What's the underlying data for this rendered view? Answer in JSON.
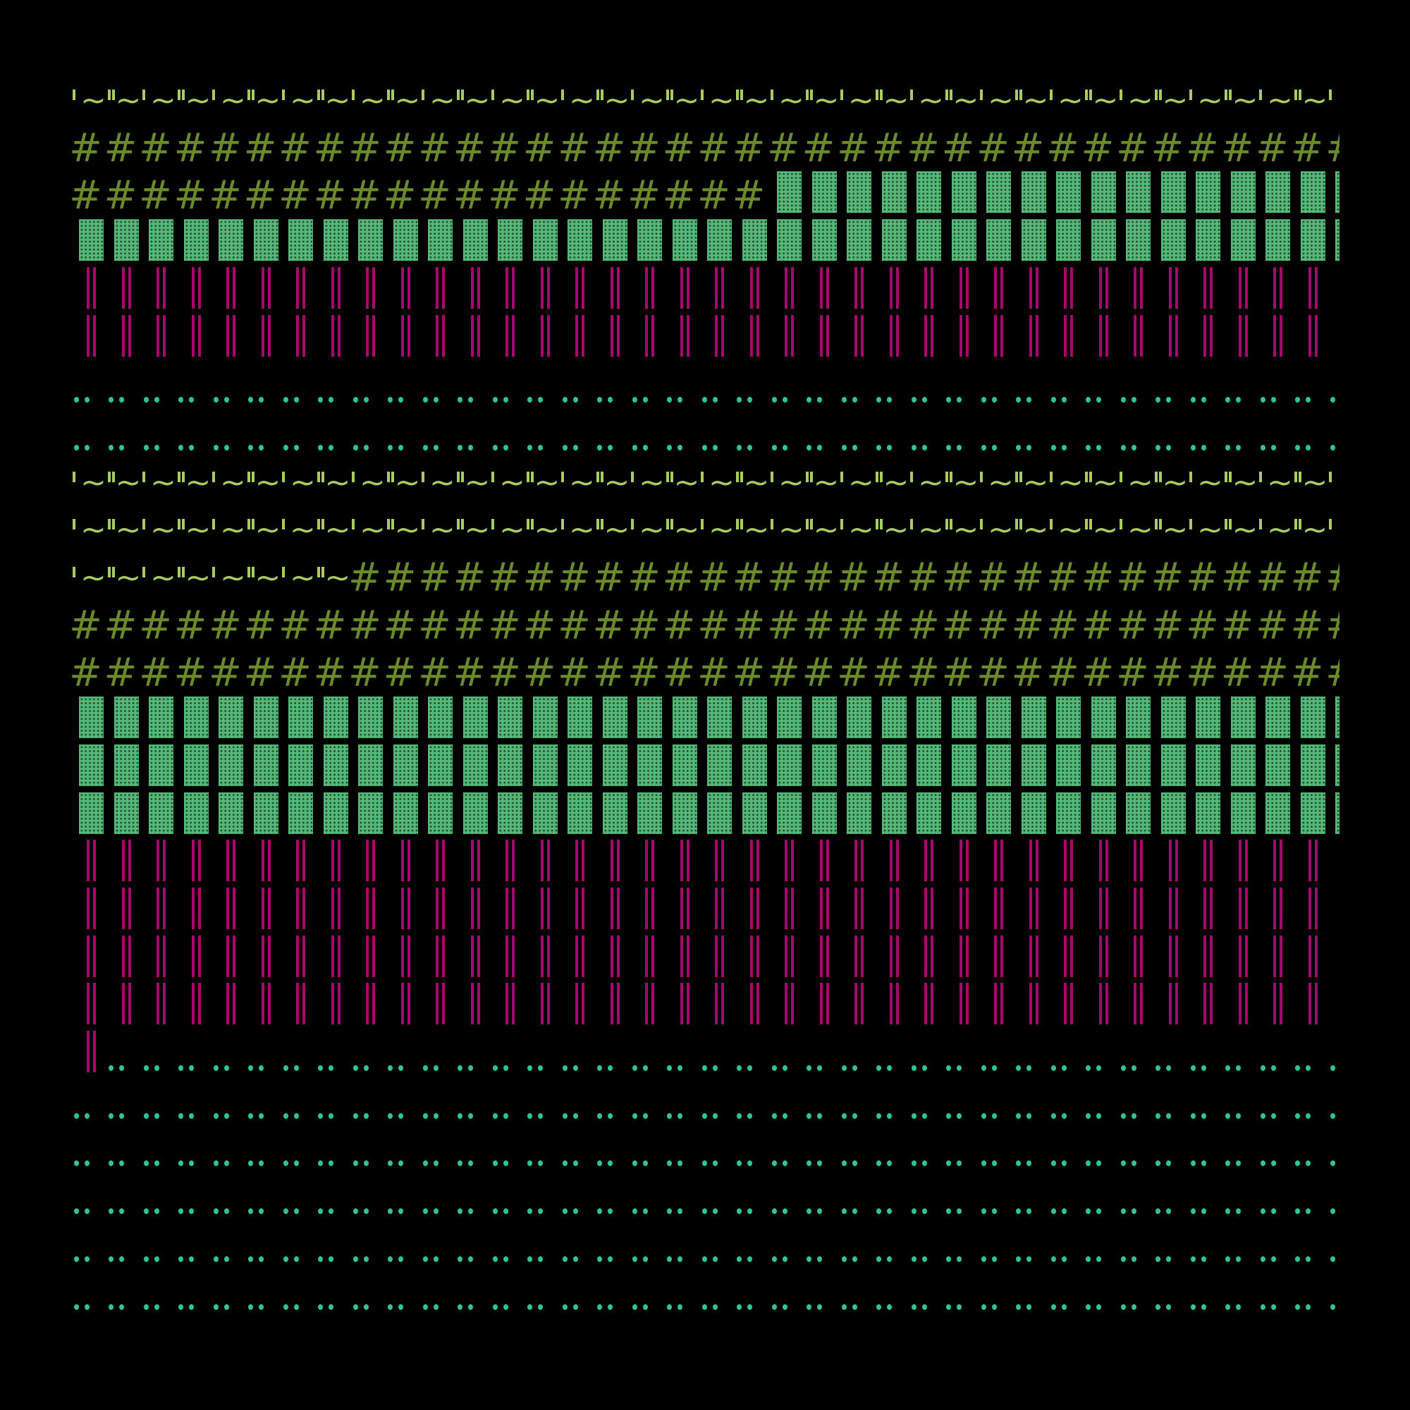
{
  "chart_data": {
    "type": "waffle",
    "columns": 37,
    "fill_order": "row-wise, left to right, top to bottom",
    "glyphs": {
      "tilde": {
        "symbol": "'~ / \"~",
        "color": "#a8cc60"
      },
      "hash": {
        "symbol": "#",
        "color": "#6b8a2a"
      },
      "block": {
        "symbol": "dotted block",
        "color": "#55b878"
      },
      "bars": {
        "symbol": "||",
        "color": "#a8086e"
      },
      "dots": {
        "symbol": "··",
        "color": "#2ec49a"
      }
    },
    "groups": [
      {
        "counts": {
          "tilde": 37,
          "hash": 57,
          "block": 54,
          "bars": 74,
          "dots": 74
        }
      },
      {
        "counts": {
          "tilde": 82,
          "hash": 103,
          "block": 111,
          "bars": 149,
          "dots": 221
        }
      }
    ],
    "background": "#000000"
  }
}
